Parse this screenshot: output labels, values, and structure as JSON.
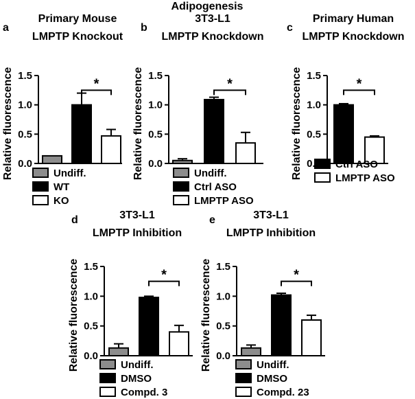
{
  "figure_title": "Adipogenesis",
  "colors": {
    "gray": "#8c8c8c",
    "black": "#000000",
    "white": "#ffffff"
  },
  "chart_data": [
    {
      "type": "bar",
      "letter": "a",
      "title_lines": [
        "Primary Mouse",
        "LMPTP Knockout"
      ],
      "ylabel": "Relative fluorescence",
      "ylim": [
        0,
        1.5
      ],
      "yticks": [
        "0.0",
        "0.5",
        "1.0",
        "1.5"
      ],
      "categories": [
        "Undiff.",
        "WT",
        "KO"
      ],
      "values": [
        0.13,
        1.0,
        0.47
      ],
      "errors": [
        0,
        0.2,
        0.11
      ],
      "fills": [
        "gray",
        "black",
        "white"
      ],
      "significance": {
        "between": [
          1,
          2
        ],
        "label": "*"
      },
      "legend": [
        "Undiff.",
        "WT",
        "KO"
      ]
    },
    {
      "type": "bar",
      "letter": "b",
      "title_lines": [
        "3T3-L1",
        "LMPTP Knockdown"
      ],
      "ylabel": "Relative fluorescence",
      "ylim": [
        0,
        1.5
      ],
      "yticks": [
        "0.0",
        "0.5",
        "1.0",
        "1.5"
      ],
      "categories": [
        "Undiff.",
        "Ctrl ASO",
        "LMPTP ASO"
      ],
      "values": [
        0.05,
        1.09,
        0.35
      ],
      "errors": [
        0.03,
        0.04,
        0.18
      ],
      "fills": [
        "gray",
        "black",
        "white"
      ],
      "significance": {
        "between": [
          1,
          2
        ],
        "label": "*"
      },
      "legend": [
        "Undiff.",
        "Ctrl ASO",
        "LMPTP ASO"
      ]
    },
    {
      "type": "bar",
      "letter": "c",
      "title_lines": [
        "Primary Human",
        "LMPTP Knockdown"
      ],
      "ylabel": "Relative fluorescence",
      "ylim": [
        0,
        1.5
      ],
      "yticks": [
        "0.0",
        "0.5",
        "1.0",
        "1.5"
      ],
      "categories": [
        "Ctrl ASO",
        "LMPTP ASO"
      ],
      "values": [
        1.0,
        0.45
      ],
      "errors": [
        0.02,
        0.02
      ],
      "fills": [
        "black",
        "white"
      ],
      "significance": {
        "between": [
          0,
          1
        ],
        "label": "*"
      },
      "legend": [
        "Ctrl ASO",
        "LMPTP ASO"
      ]
    },
    {
      "type": "bar",
      "letter": "d",
      "title_lines": [
        "3T3-L1",
        "LMPTP Inhibition"
      ],
      "ylabel": "Relative fluorescence",
      "ylim": [
        0,
        1.5
      ],
      "yticks": [
        "0.0",
        "0.5",
        "1.0",
        "1.5"
      ],
      "categories": [
        "Undiff.",
        "DMSO",
        "Compd. 3"
      ],
      "values": [
        0.13,
        0.98,
        0.4
      ],
      "errors": [
        0.07,
        0.02,
        0.11
      ],
      "fills": [
        "gray",
        "black",
        "white"
      ],
      "significance": {
        "between": [
          1,
          2
        ],
        "label": "*"
      },
      "legend": [
        "Undiff.",
        "DMSO",
        "Compd. 3"
      ]
    },
    {
      "type": "bar",
      "letter": "e",
      "title_lines": [
        "3T3-L1",
        "LMPTP Inhibition"
      ],
      "ylabel": "Relative fluorescence",
      "ylim": [
        0,
        1.5
      ],
      "yticks": [
        "0.0",
        "0.5",
        "1.0",
        "1.5"
      ],
      "categories": [
        "Undiff.",
        "DMSO",
        "Compd. 23"
      ],
      "values": [
        0.13,
        1.02,
        0.6
      ],
      "errors": [
        0.05,
        0.03,
        0.08
      ],
      "fills": [
        "gray",
        "black",
        "white"
      ],
      "significance": {
        "between": [
          1,
          2
        ],
        "label": "*"
      },
      "legend": [
        "Undiff.",
        "DMSO",
        "Compd. 23"
      ]
    }
  ]
}
